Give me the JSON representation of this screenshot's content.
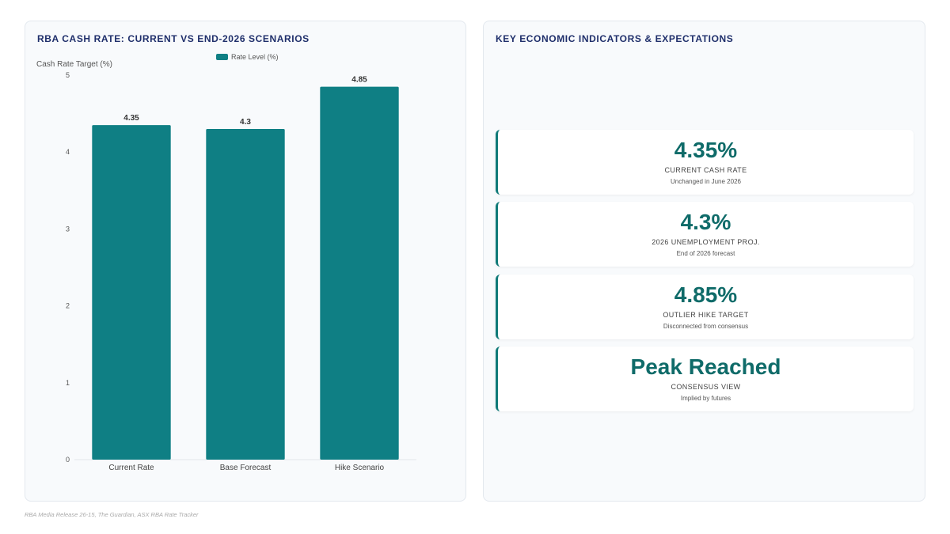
{
  "left_panel": {
    "title": "RBA CASH RATE: CURRENT VS END-2026 SCENARIOS"
  },
  "right_panel": {
    "title": "KEY ECONOMIC INDICATORS & EXPECTATIONS",
    "cards": [
      {
        "value": "4.35%",
        "label": "CURRENT CASH RATE",
        "sub": "Unchanged in June 2026"
      },
      {
        "value": "4.3%",
        "label": "2026 UNEMPLOYMENT PROJ.",
        "sub": "End of 2026 forecast"
      },
      {
        "value": "4.85%",
        "label": "OUTLIER HIKE TARGET",
        "sub": "Disconnected from consensus"
      },
      {
        "value": "Peak Reached",
        "label": "CONSENSUS VIEW",
        "sub": "Implied by futures"
      }
    ]
  },
  "source": "RBA Media Release 26-15, The Guardian, ASX RBA Rate Tracker",
  "colors": {
    "bar": "#0f7f84",
    "accent": "#0f7a78",
    "title": "#1f2f6b"
  },
  "chart_data": {
    "type": "bar",
    "categories": [
      "Current Rate",
      "Base Forecast",
      "Hike Scenario"
    ],
    "series": [
      {
        "name": "Rate Level (%)",
        "values": [
          4.35,
          4.3,
          4.85
        ]
      }
    ],
    "data_labels": [
      "4.35",
      "4.3",
      "4.85"
    ],
    "ylabel": "Cash Rate Target (%)",
    "xlabel": "",
    "ylim": [
      0,
      5
    ],
    "yticks": [
      0,
      1,
      2,
      3,
      4,
      5
    ],
    "grid": false,
    "legend": "top-center"
  }
}
